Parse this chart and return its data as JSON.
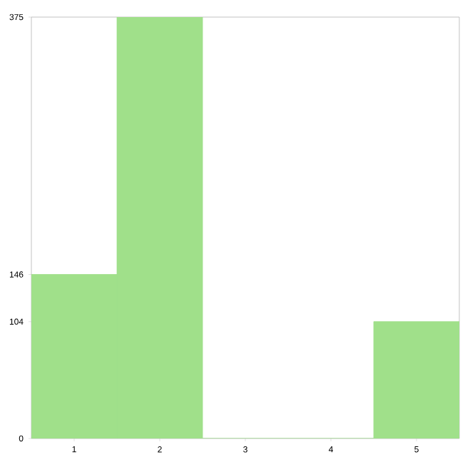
{
  "chart_data": {
    "type": "bar",
    "categories": [
      "1",
      "2",
      "3",
      "4",
      "5"
    ],
    "values": [
      146,
      375,
      0,
      0,
      104
    ],
    "color": "#a0e08a",
    "ylim": [
      0,
      375
    ],
    "yticks": [
      0,
      104,
      146,
      375
    ],
    "grid": false
  }
}
